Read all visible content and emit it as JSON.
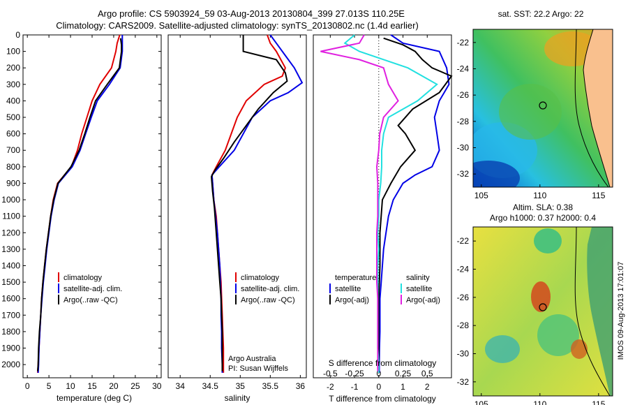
{
  "header": {
    "line1": "Argo profile: CS 5903924_59 03-Aug-2013 20130804_399 27.013S 110.25E",
    "line2": "Climatology: CARS2009. Satellite-adjusted climatology: synTS_20130802.nc (1.4d earlier)"
  },
  "colors": {
    "climatology": "#e00000",
    "satellite": "#0000e6",
    "argo": "#000000",
    "sat_salinity": "#22e0e0",
    "argo_salinity": "#e020e0",
    "land": "#f9c08e"
  },
  "depth_axis": {
    "ticks": [
      "0",
      "100",
      "200",
      "300",
      "400",
      "500",
      "600",
      "700",
      "800",
      "900",
      "1000",
      "1100",
      "1200",
      "1300",
      "1400",
      "1500",
      "1600",
      "1700",
      "1800",
      "1900",
      "2000"
    ]
  },
  "panels": {
    "temperature": {
      "xlabel": "temperature (deg C)",
      "xticks": [
        "0",
        "5",
        "10",
        "15",
        "20",
        "25",
        "30"
      ],
      "legend": [
        "climatology",
        "satellite-adj. clim.",
        "Argo(..raw -QC)"
      ]
    },
    "salinity": {
      "xlabel": "salinity",
      "xticks": [
        "34",
        "34.5",
        "35",
        "35.5",
        "36"
      ],
      "legend": [
        "climatology",
        "satellite-adj. clim.",
        "Argo(..raw -QC)"
      ],
      "note1": "Argo Australia",
      "note2": "PI: Susan Wijffels"
    },
    "difference": {
      "xlabel": "T difference from climatology",
      "xlabel_top": "S difference from climatology",
      "xticks": [
        "-2",
        "-1",
        "0",
        "1",
        "2"
      ],
      "xticks_top": [
        "-0.5",
        "-0.25",
        "0",
        "0.25",
        "0.5"
      ],
      "legend_temp_head": "temperature",
      "legend_sal_head": "salinity",
      "legend_temp": [
        "satellite",
        "Argo(-adj)"
      ],
      "legend_sal": [
        "satellite",
        "Argo(-adj)"
      ]
    }
  },
  "maps": {
    "sst": {
      "title": "sat. SST: 22.2 Argo: 22",
      "yticks": [
        "-22",
        "-24",
        "-26",
        "-28",
        "-30",
        "-32"
      ],
      "xticks": [
        "105",
        "110",
        "115"
      ]
    },
    "sla": {
      "title1": "Altim. SLA: 0.38",
      "title2": "Argo h1000: 0.37 h2000: 0.4",
      "yticks": [
        "-22",
        "-24",
        "-26",
        "-28",
        "-30",
        "-32"
      ],
      "xticks": [
        "105",
        "110",
        "115"
      ]
    },
    "stamp": "IMOS 09-Aug-2013 17:01:07"
  },
  "chart_data": [
    {
      "type": "line",
      "title": "",
      "xlabel": "temperature (deg C)",
      "ylabel": "",
      "xlim": [
        -1,
        31
      ],
      "ylim": [
        2080,
        0
      ],
      "series": [
        {
          "name": "climatology",
          "points": [
            [
              21.4,
              0
            ],
            [
              20.8,
              50
            ],
            [
              20.5,
              100
            ],
            [
              19.5,
              200
            ],
            [
              16.8,
              300
            ],
            [
              15,
              400
            ],
            [
              13.8,
              500
            ],
            [
              12.6,
              600
            ],
            [
              11.6,
              700
            ],
            [
              10.2,
              800
            ],
            [
              7,
              900
            ],
            [
              6,
              1000
            ],
            [
              5.4,
              1100
            ],
            [
              4.9,
              1200
            ],
            [
              4.4,
              1300
            ],
            [
              4,
              1400
            ],
            [
              3.6,
              1500
            ],
            [
              3.3,
              1600
            ],
            [
              3.1,
              1700
            ],
            [
              2.9,
              1800
            ],
            [
              2.7,
              1900
            ],
            [
              2.5,
              2000
            ],
            [
              2.4,
              2050
            ]
          ]
        },
        {
          "name": "satellite-adj. clim.",
          "points": [
            [
              22,
              0
            ],
            [
              22,
              50
            ],
            [
              22,
              100
            ],
            [
              21.5,
              200
            ],
            [
              19,
              300
            ],
            [
              16.2,
              400
            ],
            [
              14.8,
              500
            ],
            [
              13.5,
              600
            ],
            [
              12.2,
              700
            ],
            [
              10.4,
              800
            ],
            [
              7.2,
              900
            ],
            [
              6.2,
              1000
            ],
            [
              5.5,
              1100
            ],
            [
              5,
              1200
            ],
            [
              4.5,
              1300
            ],
            [
              4.1,
              1400
            ],
            [
              3.7,
              1500
            ],
            [
              3.4,
              1600
            ],
            [
              3.1,
              1700
            ],
            [
              2.9,
              1800
            ],
            [
              2.7,
              1900
            ],
            [
              2.6,
              2000
            ],
            [
              2.5,
              2050
            ]
          ]
        },
        {
          "name": "Argo(..raw -QC)",
          "points": [
            [
              21.6,
              20
            ],
            [
              21.8,
              60
            ],
            [
              21.8,
              100
            ],
            [
              21.3,
              200
            ],
            [
              18.5,
              300
            ],
            [
              15.8,
              400
            ],
            [
              14.5,
              500
            ],
            [
              13.3,
              600
            ],
            [
              12,
              700
            ],
            [
              10.1,
              800
            ],
            [
              7.1,
              900
            ],
            [
              6.1,
              1000
            ],
            [
              5.4,
              1100
            ],
            [
              4.9,
              1200
            ],
            [
              4.4,
              1300
            ],
            [
              4,
              1400
            ],
            [
              3.6,
              1500
            ],
            [
              3.3,
              1600
            ],
            [
              3.1,
              1700
            ],
            [
              2.8,
              1800
            ],
            [
              2.6,
              1900
            ],
            [
              2.5,
              2000
            ],
            [
              2.4,
              2040
            ]
          ]
        }
      ]
    },
    {
      "type": "line",
      "title": "",
      "xlabel": "salinity",
      "ylabel": "",
      "xlim": [
        33.8,
        36.1
      ],
      "ylim": [
        2080,
        0
      ],
      "series": [
        {
          "name": "climatology",
          "points": [
            [
              35.45,
              0
            ],
            [
              35.5,
              50
            ],
            [
              35.6,
              100
            ],
            [
              35.75,
              200
            ],
            [
              35.7,
              250
            ],
            [
              35.4,
              300
            ],
            [
              35.1,
              400
            ],
            [
              34.95,
              500
            ],
            [
              34.85,
              600
            ],
            [
              34.75,
              700
            ],
            [
              34.6,
              800
            ],
            [
              34.53,
              850
            ],
            [
              34.54,
              900
            ],
            [
              34.56,
              1000
            ],
            [
              34.6,
              1100
            ],
            [
              34.62,
              1200
            ],
            [
              34.64,
              1300
            ],
            [
              34.66,
              1400
            ],
            [
              34.68,
              1500
            ],
            [
              34.69,
              1600
            ],
            [
              34.7,
              1700
            ],
            [
              34.71,
              1800
            ],
            [
              34.72,
              1900
            ],
            [
              34.72,
              2000
            ],
            [
              34.72,
              2050
            ]
          ]
        },
        {
          "name": "satellite-adj. clim.",
          "points": [
            [
              35.5,
              0
            ],
            [
              35.6,
              50
            ],
            [
              35.7,
              100
            ],
            [
              35.9,
              200
            ],
            [
              36.03,
              290
            ],
            [
              35.8,
              350
            ],
            [
              35.5,
              400
            ],
            [
              35.2,
              500
            ],
            [
              35.05,
              600
            ],
            [
              34.9,
              700
            ],
            [
              34.65,
              800
            ],
            [
              34.53,
              850
            ],
            [
              34.54,
              900
            ],
            [
              34.56,
              1000
            ],
            [
              34.59,
              1100
            ],
            [
              34.62,
              1200
            ],
            [
              34.64,
              1300
            ],
            [
              34.66,
              1400
            ],
            [
              34.67,
              1500
            ],
            [
              34.68,
              1600
            ],
            [
              34.68,
              1700
            ],
            [
              34.69,
              1800
            ],
            [
              34.69,
              1900
            ],
            [
              34.7,
              2000
            ],
            [
              34.7,
              2050
            ]
          ]
        },
        {
          "name": "Argo(..raw -QC)",
          "points": [
            [
              35.05,
              0
            ],
            [
              35.05,
              50
            ],
            [
              35.05,
              100
            ],
            [
              35.6,
              150
            ],
            [
              35.75,
              230
            ],
            [
              35.78,
              280
            ],
            [
              35.55,
              350
            ],
            [
              35.3,
              450
            ],
            [
              35.1,
              550
            ],
            [
              34.9,
              650
            ],
            [
              34.72,
              750
            ],
            [
              34.58,
              820
            ],
            [
              34.52,
              860
            ],
            [
              34.54,
              950
            ],
            [
              34.57,
              1050
            ],
            [
              34.6,
              1200
            ],
            [
              34.62,
              1300
            ],
            [
              34.64,
              1400
            ],
            [
              34.66,
              1500
            ],
            [
              34.68,
              1600
            ],
            [
              34.69,
              1700
            ],
            [
              34.7,
              1800
            ],
            [
              34.7,
              1900
            ],
            [
              34.7,
              2000
            ],
            [
              34.7,
              2040
            ]
          ]
        }
      ]
    },
    {
      "type": "line",
      "title": "",
      "xlabel": "T difference from climatology",
      "xlabel_top": "S difference from climatology",
      "ylabel": "",
      "xlim": [
        -2.7,
        3
      ],
      "ylim": [
        2080,
        0
      ],
      "series": [
        {
          "name": "satellite (temperature)",
          "points": [
            [
              0.5,
              0
            ],
            [
              1,
              50
            ],
            [
              2.5,
              100
            ],
            [
              2.8,
              200
            ],
            [
              2.9,
              300
            ],
            [
              2.5,
              400
            ],
            [
              2.3,
              500
            ],
            [
              2.4,
              600
            ],
            [
              2.5,
              700
            ],
            [
              2.2,
              800
            ],
            [
              1.5,
              850
            ],
            [
              1,
              900
            ],
            [
              0.6,
              1000
            ],
            [
              0.4,
              1100
            ],
            [
              0.3,
              1200
            ],
            [
              0.2,
              1300
            ],
            [
              0.15,
              1400
            ],
            [
              0.1,
              1500
            ],
            [
              0.05,
              1600
            ],
            [
              0.05,
              1700
            ],
            [
              0.05,
              1800
            ],
            [
              0.03,
              1900
            ],
            [
              0.02,
              2000
            ],
            [
              0.02,
              2050
            ]
          ]
        },
        {
          "name": "Argo(-adj) (temperature)",
          "points": [
            [
              0.2,
              20
            ],
            [
              1,
              60
            ],
            [
              1.5,
              100
            ],
            [
              1.8,
              150
            ],
            [
              2.2,
              200
            ],
            [
              3,
              250
            ],
            [
              2.5,
              350
            ],
            [
              1.4,
              450
            ],
            [
              0.8,
              550
            ],
            [
              1.1,
              600
            ],
            [
              1.5,
              700
            ],
            [
              0.9,
              800
            ],
            [
              0.5,
              900
            ],
            [
              0.15,
              1000
            ],
            [
              0.05,
              1200
            ],
            [
              0.05,
              1400
            ],
            [
              0,
              1600
            ],
            [
              0,
              1800
            ],
            [
              0,
              2040
            ]
          ]
        },
        {
          "name": "satellite (salinity)",
          "points": [
            [
              -0.25,
              0
            ],
            [
              -0.35,
              50
            ],
            [
              -0.2,
              100
            ],
            [
              0.3,
              200
            ],
            [
              0.6,
              300
            ],
            [
              0.4,
              400
            ],
            [
              0.1,
              500
            ],
            [
              0.05,
              600
            ],
            [
              0.03,
              700
            ],
            [
              0.03,
              800
            ],
            [
              0.02,
              900
            ],
            [
              0,
              1000
            ],
            [
              0,
              1100
            ],
            [
              -0.01,
              1200
            ],
            [
              0,
              1300
            ],
            [
              -0.01,
              1400
            ],
            [
              -0.01,
              1500
            ],
            [
              -0.01,
              1600
            ],
            [
              -0.01,
              1700
            ],
            [
              -0.01,
              1800
            ],
            [
              -0.01,
              1900
            ],
            [
              0,
              2000
            ],
            [
              0,
              2050
            ]
          ]
        },
        {
          "name": "Argo(-adj) (salinity)",
          "points": [
            [
              -0.15,
              0
            ],
            [
              -0.2,
              50
            ],
            [
              -0.6,
              100
            ],
            [
              -0.2,
              150
            ],
            [
              0.05,
              200
            ],
            [
              0.1,
              300
            ],
            [
              0.2,
              400
            ],
            [
              0.05,
              500
            ],
            [
              0.01,
              600
            ],
            [
              0,
              700
            ],
            [
              -0.02,
              800
            ],
            [
              -0.01,
              900
            ],
            [
              -0.01,
              1000
            ],
            [
              -0.01,
              1100
            ],
            [
              -0.02,
              1200
            ],
            [
              -0.02,
              1300
            ],
            [
              -0.02,
              1400
            ],
            [
              -0.02,
              1500
            ],
            [
              -0.01,
              1600
            ],
            [
              -0.01,
              1800
            ],
            [
              -0.01,
              2000
            ],
            [
              -0.01,
              2040
            ]
          ]
        }
      ]
    }
  ]
}
